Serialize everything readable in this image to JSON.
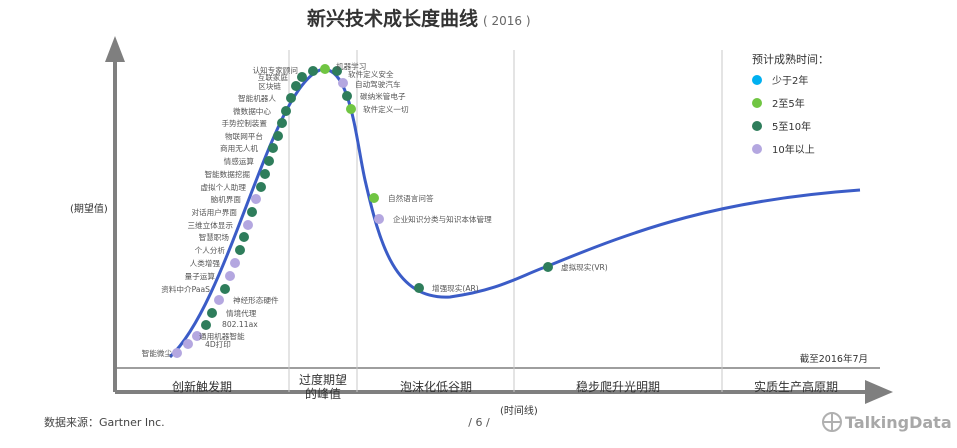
{
  "title": "新兴技术成长度曲线",
  "title_year": "( 2016 )",
  "footer_source": "数据来源：Gartner Inc.",
  "page_number": "/  6  /",
  "brand": "TalkingData",
  "chart_data": {
    "type": "scatter",
    "title": "新兴技术成长度曲线 ( 2016 )",
    "ylabel": "(期望值)",
    "xlabel": "(时间线)",
    "note": "截至2016年7月",
    "legend_title": "预计成熟时间：",
    "legend_position": "top-right",
    "categories": [
      {
        "key": "lt2",
        "label": "少于2年",
        "color": "#00b0f0"
      },
      {
        "key": "2to5",
        "label": "2至5年",
        "color": "#70c542"
      },
      {
        "key": "5to10",
        "label": "5至10年",
        "color": "#2e7d5b"
      },
      {
        "key": "gt10",
        "label": "10年以上",
        "color": "#b4a7e0"
      }
    ],
    "phases": [
      {
        "label": "创新触发期"
      },
      {
        "label": "过度期望",
        "label2": "的峰值"
      },
      {
        "label": "泡沫化低谷期"
      },
      {
        "label": "稳步爬升光明期"
      },
      {
        "label": "实质生产高原期"
      }
    ],
    "points": [
      {
        "name": "智能微尘",
        "cat": "gt10"
      },
      {
        "name": "4D打印",
        "cat": "gt10"
      },
      {
        "name": "通用机器智能",
        "cat": "gt10"
      },
      {
        "name": "802.11ax",
        "cat": "5to10"
      },
      {
        "name": "情境代理",
        "cat": "5to10"
      },
      {
        "name": "神经形态硬件",
        "cat": "gt10"
      },
      {
        "name": "资料中介PaaS",
        "cat": "5to10"
      },
      {
        "name": "量子运算",
        "cat": "gt10"
      },
      {
        "name": "人类增强",
        "cat": "gt10"
      },
      {
        "name": "个人分析",
        "cat": "5to10"
      },
      {
        "name": "智慧职场",
        "cat": "5to10"
      },
      {
        "name": "三维立体显示",
        "cat": "gt10"
      },
      {
        "name": "对话用户界面",
        "cat": "5to10"
      },
      {
        "name": "脑机界面",
        "cat": "gt10"
      },
      {
        "name": "虚拟个人助理",
        "cat": "5to10"
      },
      {
        "name": "智能数据挖掘",
        "cat": "5to10"
      },
      {
        "name": "情感运算",
        "cat": "5to10"
      },
      {
        "name": "商用无人机",
        "cat": "5to10"
      },
      {
        "name": "物联网平台",
        "cat": "5to10"
      },
      {
        "name": "手势控制装置",
        "cat": "5to10"
      },
      {
        "name": "微数据中心",
        "cat": "5to10"
      },
      {
        "name": "智能机器人",
        "cat": "5to10"
      },
      {
        "name": "区块链",
        "cat": "5to10"
      },
      {
        "name": "互联家庭",
        "cat": "5to10"
      },
      {
        "name": "认知专家顾问",
        "cat": "5to10"
      },
      {
        "name": "机器学习",
        "cat": "2to5"
      },
      {
        "name": "软件定义安全",
        "cat": "5to10"
      },
      {
        "name": "自动驾驶汽车",
        "cat": "gt10"
      },
      {
        "name": "碳纳米管电子",
        "cat": "5to10"
      },
      {
        "name": "软件定义一切",
        "cat": "2to5"
      },
      {
        "name": "自然语言问答",
        "cat": "2to5"
      },
      {
        "name": "企业知识分类与知识本体管理",
        "cat": "gt10"
      },
      {
        "name": "增强现实(AR)",
        "cat": "5to10"
      },
      {
        "name": "虚拟现实(VR)",
        "cat": "5to10"
      }
    ]
  }
}
